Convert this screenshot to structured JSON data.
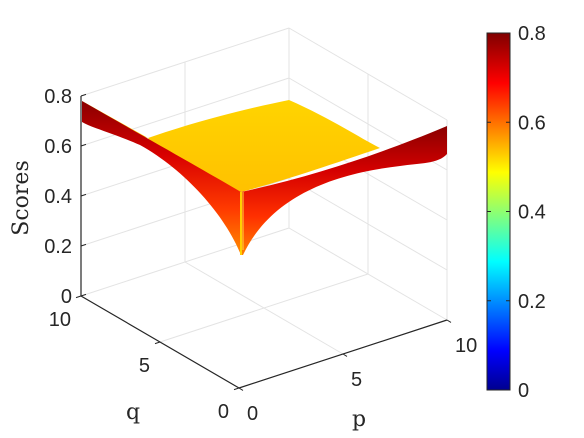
{
  "chart_data": {
    "type": "surface3d",
    "title": "",
    "xlabel": "p",
    "ylabel": "q",
    "zlabel": "Scores",
    "xlim": [
      0,
      10
    ],
    "ylim": [
      0,
      10
    ],
    "zlim": [
      0,
      0.8
    ],
    "x_ticks": [
      "0",
      "5",
      "10"
    ],
    "y_ticks": [
      "0",
      "5",
      "10"
    ],
    "z_ticks": [
      "0",
      "0.2",
      "0.4",
      "0.6",
      "0.8"
    ],
    "grid": true,
    "colormap": "jet",
    "colorbar": {
      "position": "right",
      "range": [
        0,
        0.8
      ],
      "ticks": [
        "0",
        "0.2",
        "0.4",
        "0.6",
        "0.8"
      ]
    },
    "surface_samples": [
      {
        "p": 0,
        "q": 0,
        "score": 0.2
      },
      {
        "p": 0,
        "q": 5,
        "score": 0.55
      },
      {
        "p": 0,
        "q": 10,
        "score": 0.8
      },
      {
        "p": 5,
        "q": 0,
        "score": 0.55
      },
      {
        "p": 5,
        "q": 5,
        "score": 0.55
      },
      {
        "p": 10,
        "q": 0,
        "score": 0.8
      },
      {
        "p": 10,
        "q": 10,
        "score": 0.55
      }
    ]
  }
}
